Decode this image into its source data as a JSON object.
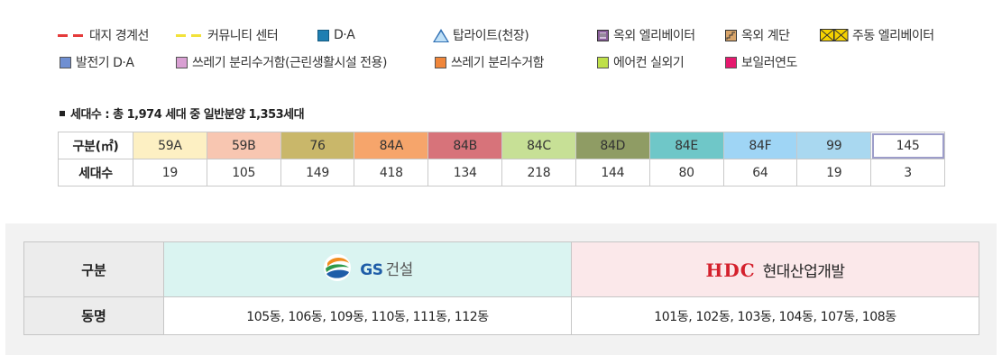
{
  "legend": {
    "row1": [
      {
        "label": "대지 경계선",
        "kind": "dash",
        "color": "#e53b3b",
        "icon": "red-dashed-line-icon"
      },
      {
        "label": "커뮤니티 센터",
        "kind": "dash",
        "color": "#f2e23a",
        "icon": "yellow-dashed-line-icon"
      },
      {
        "label": "D·A",
        "kind": "box",
        "color": "#1f7fb2",
        "icon": "blue-square-icon"
      },
      {
        "label": "탑라이트(천장)",
        "kind": "tri",
        "color": "#2f6fb3",
        "icon": "triangle-icon"
      },
      {
        "label": "옥외 엘리베이터",
        "kind": "icon",
        "color": "#8a5f9a",
        "icon": "outdoor-elevator-icon"
      },
      {
        "label": "옥외 계단",
        "kind": "icon",
        "color": "#b07a3c",
        "icon": "outdoor-stairs-icon"
      },
      {
        "label": "주동 엘리베이터",
        "kind": "icon",
        "color": "#f5d200",
        "icon": "main-elevator-icon"
      }
    ],
    "row2": [
      {
        "label": "발전기 D·A",
        "kind": "box",
        "color": "#6f8fd2",
        "icon": "periwinkle-square-icon"
      },
      {
        "label": "쓰레기 분리수거함(근린생활시설 전용)",
        "kind": "box",
        "color": "#d9a0d3",
        "icon": "pink-square-icon"
      },
      {
        "label": "쓰레기 분리수거함",
        "kind": "box",
        "color": "#f0863a",
        "icon": "orange-square-icon"
      },
      {
        "label": "에어컨 실외기",
        "kind": "box",
        "color": "#bfe04a",
        "icon": "lime-square-icon"
      },
      {
        "label": "보일러연도",
        "kind": "box",
        "color": "#e5196e",
        "icon": "magenta-square-icon"
      }
    ]
  },
  "households": {
    "summary": "세대수 : 총 1,974 세대 중 일반분양 1,353세대",
    "type_header": "구분(㎡)",
    "count_header": "세대수",
    "types": [
      {
        "label": "59A",
        "count": "19",
        "color": "#fdf0c3"
      },
      {
        "label": "59B",
        "count": "105",
        "color": "#f8c6b1"
      },
      {
        "label": "76",
        "count": "149",
        "color": "#c9b76a"
      },
      {
        "label": "84A",
        "count": "418",
        "color": "#f6a56b"
      },
      {
        "label": "84B",
        "count": "134",
        "color": "#d7737a"
      },
      {
        "label": "84C",
        "count": "218",
        "color": "#c7e096"
      },
      {
        "label": "84D",
        "count": "144",
        "color": "#8f9c64"
      },
      {
        "label": "84E",
        "count": "80",
        "color": "#6fc7c8"
      },
      {
        "label": "84F",
        "count": "64",
        "color": "#9fd5f5"
      },
      {
        "label": "99",
        "count": "19",
        "color": "#a9d8f0"
      },
      {
        "label": "145",
        "count": "3",
        "color": "#ffffff"
      }
    ]
  },
  "builders": {
    "header_label": "구분",
    "buildings_label": "동명",
    "gs": {
      "logo_text": "GS",
      "name": "건설",
      "buildings": "105동, 106동, 109동, 110동, 111동, 112동"
    },
    "hdc": {
      "logo_text": "HDC",
      "name": "현대산업개발",
      "buildings": "101동, 102동, 103동, 104동, 107동, 108동"
    }
  }
}
